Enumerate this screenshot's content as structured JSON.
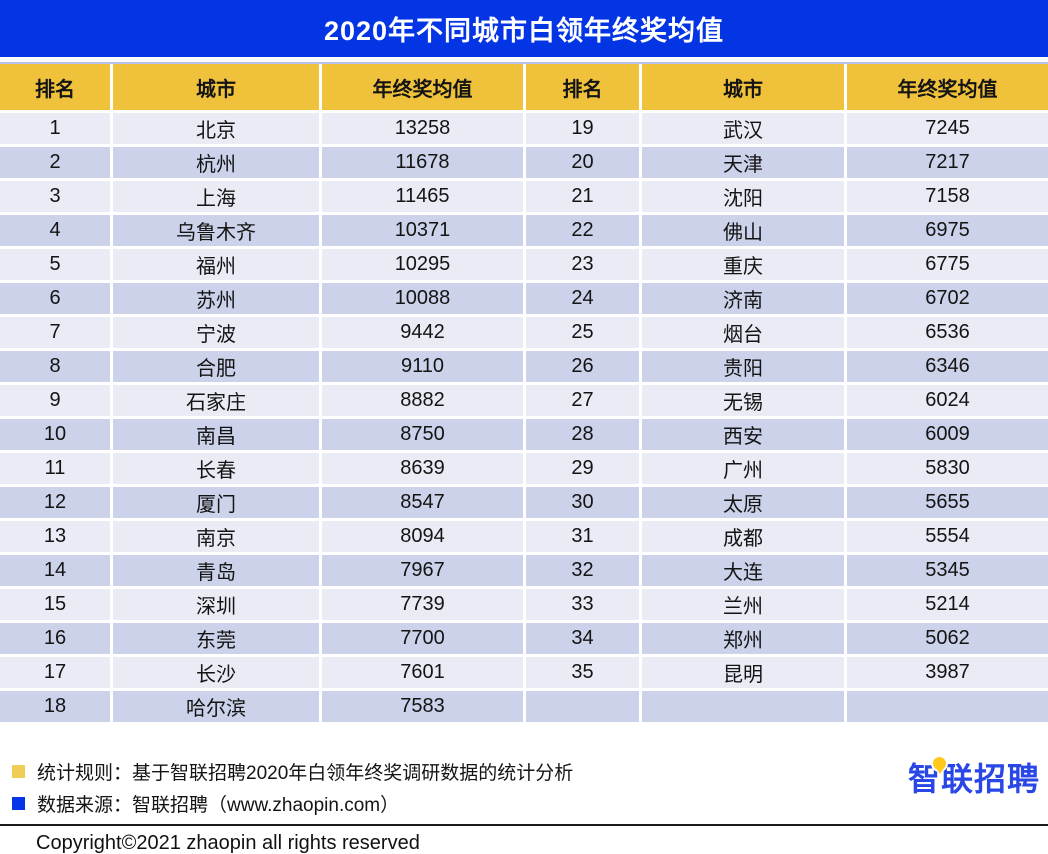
{
  "title": "2020年不同城市白领年终奖均值",
  "table": {
    "headers": [
      "排名",
      "城市",
      "年终奖均值",
      "排名",
      "城市",
      "年终奖均值"
    ]
  },
  "chart_data": {
    "type": "table",
    "title": "2020年不同城市白领年终奖均值",
    "columns": [
      "排名",
      "城市",
      "年终奖均值"
    ],
    "rows": [
      [
        1,
        "北京",
        13258
      ],
      [
        2,
        "杭州",
        11678
      ],
      [
        3,
        "上海",
        11465
      ],
      [
        4,
        "乌鲁木齐",
        10371
      ],
      [
        5,
        "福州",
        10295
      ],
      [
        6,
        "苏州",
        10088
      ],
      [
        7,
        "宁波",
        9442
      ],
      [
        8,
        "合肥",
        9110
      ],
      [
        9,
        "石家庄",
        8882
      ],
      [
        10,
        "南昌",
        8750
      ],
      [
        11,
        "长春",
        8639
      ],
      [
        12,
        "厦门",
        8547
      ],
      [
        13,
        "南京",
        8094
      ],
      [
        14,
        "青岛",
        7967
      ],
      [
        15,
        "深圳",
        7739
      ],
      [
        16,
        "东莞",
        7700
      ],
      [
        17,
        "长沙",
        7601
      ],
      [
        18,
        "哈尔滨",
        7583
      ],
      [
        19,
        "武汉",
        7245
      ],
      [
        20,
        "天津",
        7217
      ],
      [
        21,
        "沈阳",
        7158
      ],
      [
        22,
        "佛山",
        6975
      ],
      [
        23,
        "重庆",
        6775
      ],
      [
        24,
        "济南",
        6702
      ],
      [
        25,
        "烟台",
        6536
      ],
      [
        26,
        "贵阳",
        6346
      ],
      [
        27,
        "无锡",
        6024
      ],
      [
        28,
        "西安",
        6009
      ],
      [
        29,
        "广州",
        5830
      ],
      [
        30,
        "太原",
        5655
      ],
      [
        31,
        "成都",
        5554
      ],
      [
        32,
        "大连",
        5345
      ],
      [
        33,
        "兰州",
        5214
      ],
      [
        34,
        "郑州",
        5062
      ],
      [
        35,
        "昆明",
        3987
      ]
    ]
  },
  "footer": {
    "legend": [
      {
        "color": "#F0CD55",
        "text": "统计规则：基于智联招聘2020年白领年终奖调研数据的统计分析"
      },
      {
        "color": "#0435E8",
        "text": "数据来源：智联招聘（www.zhaopin.com）"
      }
    ],
    "logo_text": "智联招聘",
    "copyright": "Copyright©2021 zhaopin all rights reserved"
  },
  "colors": {
    "title_bar": "#0435E4",
    "header_yellow": "#F0C23C",
    "row_light": "#E9EBF5",
    "row_dark": "#CCD2E9",
    "logo_blue": "#2946E6",
    "pin_yellow": "#FFC91C"
  }
}
